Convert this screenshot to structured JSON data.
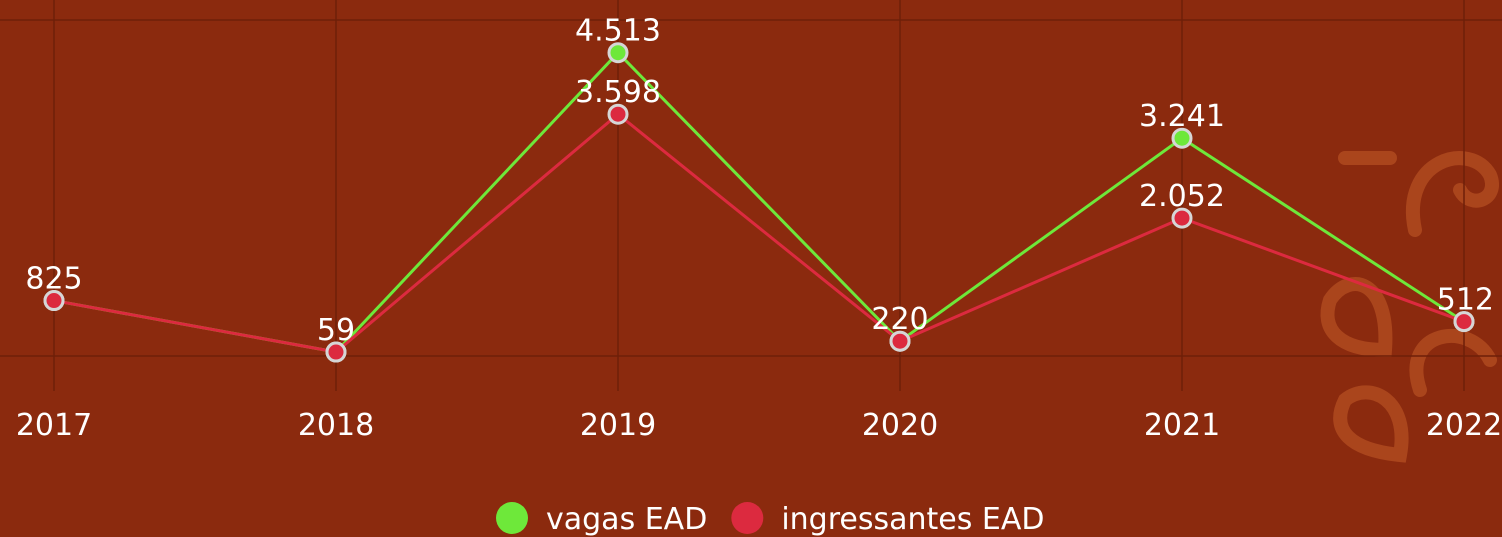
{
  "chart_data": {
    "type": "line",
    "categories": [
      "2017",
      "2018",
      "2019",
      "2020",
      "2021",
      "2022"
    ],
    "series": [
      {
        "name": "vagas EAD",
        "color": "#6ee83a",
        "values": [
          825,
          59,
          4513,
          220,
          3241,
          512
        ],
        "value_labels": [
          "825",
          "59",
          "4.513",
          "220",
          "3.241",
          "512"
        ]
      },
      {
        "name": "ingressantes EAD",
        "color": "#dc2a3f",
        "values": [
          825,
          59,
          3598,
          220,
          2052,
          512
        ],
        "value_labels": [
          null,
          null,
          "3.598",
          null,
          "2.052",
          null
        ]
      }
    ],
    "ylim": [
      0,
      5000
    ],
    "grid": true,
    "legend": "bottom"
  }
}
